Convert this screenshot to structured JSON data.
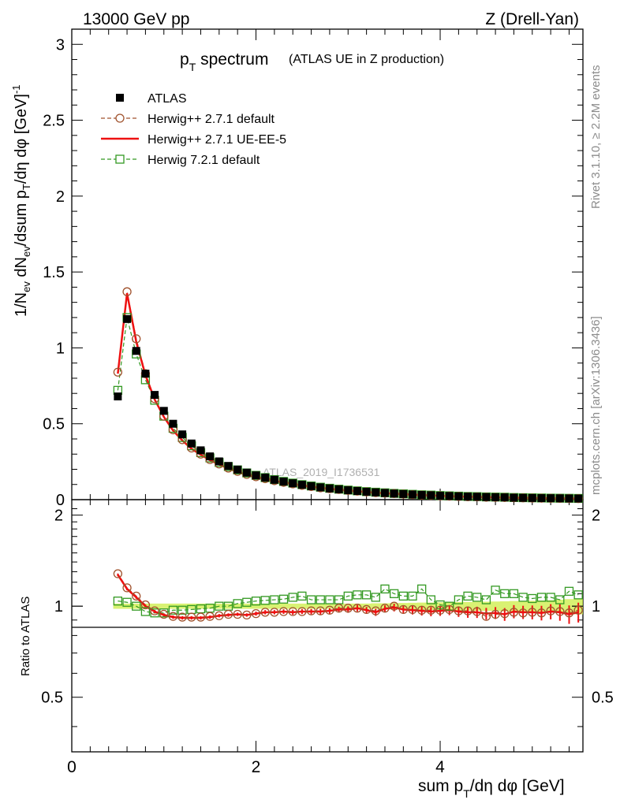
{
  "header": {
    "energy_label": "13000 GeV pp",
    "process_label": "Z (Drell-Yan)",
    "title_main": "p",
    "title_sub": "T",
    "title_word": " spectrum",
    "title_paren": "(ATLAS UE in Z production)",
    "watermark": "ATLAS_2019_I1736531",
    "side_rivet": "Rivet 3.1.10, ≥ 2.2M events",
    "side_mcplots": "mcplots.cern.ch [arXiv:1306.3436]"
  },
  "axes": {
    "ylabel_main": "1/N_ev dN_ev/dsum p_T/dη dφ [GeV]^-1",
    "ylabel_ratio": "Ratio to ATLAS",
    "xlabel": "sum p_T/dη dφ [GeV]",
    "x_ticks": [
      "0",
      "2",
      "4"
    ],
    "y_ticks_main": [
      "0",
      "0.5",
      "1",
      "1.5",
      "2",
      "2.5",
      "3"
    ],
    "y_ticks_ratio": [
      "0.5",
      "1",
      "2"
    ]
  },
  "legend": {
    "items": [
      {
        "label": "ATLAS",
        "color": "#000000",
        "marker": "filled-square"
      },
      {
        "label": "Herwig++ 2.7.1 default",
        "color": "#a0522d",
        "marker": "open-circle"
      },
      {
        "label": "Herwig++ 2.7.1 UE-EE-5",
        "color": "#ee1111",
        "marker": "line"
      },
      {
        "label": "Herwig 7.2.1 default",
        "color": "#339922",
        "marker": "open-square"
      }
    ]
  },
  "chart_data": {
    "type": "scatter",
    "title": "p_T spectrum (ATLAS UE in Z production)",
    "xlabel": "sum p_T/dη dφ [GeV]",
    "ylabel": "1/N_ev dN_ev/dsum p_T/dη dφ [GeV]^-1",
    "xlim": [
      0,
      5.55
    ],
    "ylim": [
      0,
      3.1
    ],
    "ratio_ylabel": "Ratio to ATLAS",
    "ratio_ylim": [
      0.33,
      2.25
    ],
    "ratio_scale": "log",
    "legend_position": "top-left",
    "x": [
      0.5,
      0.6,
      0.7,
      0.8,
      0.9,
      1.0,
      1.1,
      1.2,
      1.3,
      1.4,
      1.5,
      1.6,
      1.7,
      1.8,
      1.9,
      2.0,
      2.1,
      2.2,
      2.3,
      2.4,
      2.5,
      2.6,
      2.7,
      2.8,
      2.9,
      3.0,
      3.1,
      3.2,
      3.3,
      3.4,
      3.5,
      3.6,
      3.7,
      3.8,
      3.9,
      4.0,
      4.1,
      4.2,
      4.3,
      4.4,
      4.5,
      4.6,
      4.7,
      4.8,
      4.9,
      5.0,
      5.1,
      5.2,
      5.3,
      5.4,
      5.5
    ],
    "series": [
      {
        "name": "ATLAS",
        "color": "#000000",
        "values": [
          0.68,
          1.19,
          0.98,
          0.83,
          0.69,
          0.585,
          0.5,
          0.43,
          0.37,
          0.325,
          0.285,
          0.252,
          0.222,
          0.198,
          0.178,
          0.16,
          0.145,
          0.131,
          0.119,
          0.108,
          0.098,
          0.089,
          0.081,
          0.074,
          0.068,
          0.062,
          0.057,
          0.052,
          0.048,
          0.044,
          0.04,
          0.037,
          0.034,
          0.031,
          0.029,
          0.026,
          0.024,
          0.022,
          0.02,
          0.019,
          0.017,
          0.016,
          0.015,
          0.013,
          0.012,
          0.011,
          0.01,
          0.0095,
          0.0088,
          0.008,
          0.0075
        ]
      },
      {
        "name": "Herwig++ 2.7.1 default",
        "color": "#a0522d",
        "values": [
          0.84,
          1.37,
          1.06,
          0.83,
          0.665,
          0.55,
          0.46,
          0.395,
          0.34,
          0.3,
          0.264,
          0.235,
          0.208,
          0.186,
          0.166,
          0.151,
          0.138,
          0.125,
          0.114,
          0.104,
          0.094,
          0.086,
          0.078,
          0.072,
          0.067,
          0.061,
          0.056,
          0.051,
          0.046,
          0.043,
          0.04,
          0.036,
          0.033,
          0.03,
          0.028,
          0.025,
          0.023,
          0.021,
          0.019,
          0.018,
          0.016,
          0.015,
          0.014,
          0.0125,
          0.0115,
          0.0105,
          0.0095,
          0.0092,
          0.0084,
          0.0076,
          0.0073
        ],
        "ratio": [
          1.28,
          1.15,
          1.08,
          1.01,
          0.965,
          0.94,
          0.925,
          0.92,
          0.92,
          0.92,
          0.925,
          0.93,
          0.94,
          0.94,
          0.935,
          0.945,
          0.955,
          0.955,
          0.96,
          0.96,
          0.96,
          0.965,
          0.965,
          0.97,
          0.985,
          0.985,
          0.985,
          0.975,
          0.965,
          0.985,
          1.0,
          0.975,
          0.975,
          0.97,
          0.97,
          0.97,
          0.975,
          0.965,
          0.965,
          0.96,
          0.925,
          0.94,
          0.945,
          0.955,
          0.95,
          0.955,
          0.95,
          0.965,
          0.96,
          0.95,
          0.97
        ]
      },
      {
        "name": "Herwig++ 2.7.1 UE-EE-5",
        "color": "#ee1111",
        "values": [
          0.83,
          1.36,
          1.04,
          0.82,
          0.66,
          0.545,
          0.455,
          0.39,
          0.335,
          0.296,
          0.26,
          0.232,
          0.205,
          0.184,
          0.164,
          0.149,
          0.137,
          0.124,
          0.113,
          0.103,
          0.093,
          0.085,
          0.078,
          0.071,
          0.066,
          0.06,
          0.055,
          0.05,
          0.046,
          0.042,
          0.039,
          0.036,
          0.033,
          0.03,
          0.028,
          0.025,
          0.023,
          0.021,
          0.019,
          0.018,
          0.016,
          0.015,
          0.014,
          0.0125,
          0.0115,
          0.0105,
          0.0095,
          0.0092,
          0.0084,
          0.0076,
          0.0073
        ],
        "ratio": [
          1.27,
          1.14,
          1.07,
          1.0,
          0.96,
          0.935,
          0.92,
          0.915,
          0.915,
          0.915,
          0.92,
          0.93,
          0.935,
          0.94,
          0.935,
          0.945,
          0.955,
          0.955,
          0.96,
          0.955,
          0.96,
          0.96,
          0.96,
          0.965,
          0.975,
          0.975,
          0.985,
          0.97,
          0.955,
          0.98,
          0.99,
          0.975,
          0.97,
          0.965,
          0.96,
          0.965,
          0.97,
          0.96,
          0.955,
          0.955,
          0.945,
          0.95,
          0.94,
          0.96,
          0.955,
          0.955,
          0.95,
          0.96,
          0.955,
          0.94,
          0.955
        ]
      },
      {
        "name": "Herwig 7.2.1 default",
        "color": "#339922",
        "values": [
          0.72,
          1.2,
          0.96,
          0.79,
          0.655,
          0.55,
          0.47,
          0.41,
          0.355,
          0.31,
          0.275,
          0.245,
          0.218,
          0.196,
          0.176,
          0.16,
          0.145,
          0.132,
          0.12,
          0.109,
          0.099,
          0.09,
          0.082,
          0.075,
          0.069,
          0.063,
          0.058,
          0.053,
          0.049,
          0.045,
          0.041,
          0.038,
          0.035,
          0.032,
          0.03,
          0.027,
          0.025,
          0.023,
          0.021,
          0.02,
          0.018,
          0.017,
          0.016,
          0.014,
          0.013,
          0.012,
          0.011,
          0.01,
          0.0095,
          0.0088,
          0.008
        ],
        "ratio": [
          1.04,
          1.03,
          1.0,
          0.96,
          0.95,
          0.95,
          0.97,
          0.97,
          0.975,
          0.98,
          0.985,
          1.0,
          1.0,
          1.02,
          1.03,
          1.04,
          1.045,
          1.05,
          1.055,
          1.07,
          1.08,
          1.05,
          1.05,
          1.05,
          1.05,
          1.08,
          1.09,
          1.09,
          1.07,
          1.14,
          1.1,
          1.08,
          1.08,
          1.14,
          1.05,
          1.01,
          1.0,
          1.05,
          1.08,
          1.07,
          1.05,
          1.13,
          1.1,
          1.1,
          1.07,
          1.06,
          1.07,
          1.07,
          1.05,
          1.12,
          1.09
        ]
      }
    ],
    "ratio_errors": [
      0.01,
      0.01,
      0.01,
      0.01,
      0.01,
      0.01,
      0.01,
      0.01,
      0.01,
      0.01,
      0.01,
      0.01,
      0.01,
      0.01,
      0.01,
      0.012,
      0.013,
      0.013,
      0.014,
      0.015,
      0.015,
      0.016,
      0.017,
      0.017,
      0.018,
      0.02,
      0.02,
      0.02,
      0.022,
      0.022,
      0.024,
      0.025,
      0.026,
      0.028,
      0.028,
      0.03,
      0.03,
      0.032,
      0.033,
      0.034,
      0.035,
      0.036,
      0.038,
      0.04,
      0.04,
      0.042,
      0.044,
      0.046,
      0.05,
      0.055,
      0.06
    ],
    "band_color": "#ccee44"
  }
}
